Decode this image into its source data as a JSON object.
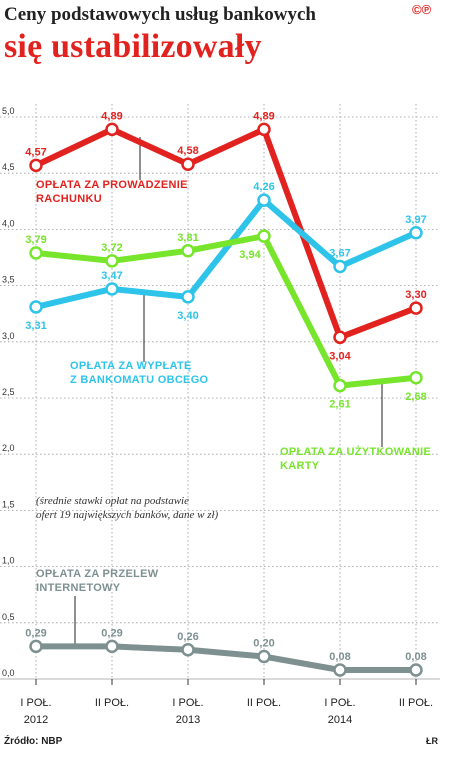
{
  "header": {
    "title": "Ceny podstawowych usług bankowych",
    "subtitle": "się ustabilizowały",
    "logo": "©℗"
  },
  "footer": {
    "source": "Źródło: NBP",
    "credit": "ŁR"
  },
  "chart_data": {
    "type": "line",
    "ylim": [
      0,
      5.0
    ],
    "yticks": [
      "0,0",
      "0,5",
      "1,0",
      "1,5",
      "2,0",
      "2,5",
      "3,0",
      "3,5",
      "4,0",
      "4,5",
      "5,0"
    ],
    "grid": true,
    "note_lines": [
      "(średnie stawki opłat na podstawie",
      "ofert 19 największych banków, dane w zł)"
    ],
    "categories": [
      {
        "line1": "I POŁ.",
        "line2": "2012"
      },
      {
        "line1": "II POŁ.",
        "line2": ""
      },
      {
        "line1": "I POŁ.",
        "line2": "2013"
      },
      {
        "line1": "II POŁ.",
        "line2": ""
      },
      {
        "line1": "I POŁ.",
        "line2": "2014"
      },
      {
        "line1": "II POŁ.",
        "line2": ""
      }
    ],
    "series": [
      {
        "id": "rachunek",
        "name_lines": [
          "OPŁATA ZA PROWADZENIE",
          "RACHUNKU"
        ],
        "color": "#e2221f",
        "values": [
          4.57,
          4.89,
          4.58,
          4.89,
          3.04,
          3.3
        ],
        "labels": [
          "4,57",
          "4,89",
          "4,58",
          "4,89",
          "3,04",
          "3,30"
        ]
      },
      {
        "id": "bankomat",
        "name_lines": [
          "OPŁATA ZA WYPŁATĘ",
          "Z BANKOMATU OBCEGO"
        ],
        "color": "#2ec4ea",
        "values": [
          3.31,
          3.47,
          3.4,
          4.26,
          3.67,
          3.97
        ],
        "labels": [
          "3,31",
          "3,47",
          "3,40",
          "4,26",
          "3,67",
          "3,97"
        ]
      },
      {
        "id": "karta",
        "name_lines": [
          "OPŁATA ZA UŻYTKOWANIE",
          "KARTY"
        ],
        "color": "#77e52b",
        "values": [
          3.79,
          3.72,
          3.81,
          3.94,
          2.61,
          2.68
        ],
        "labels": [
          "3,79",
          "3,72",
          "3,81",
          "3,94",
          "2,61",
          "2,68"
        ]
      },
      {
        "id": "przelew",
        "name_lines": [
          "OPŁATA ZA PRZELEW",
          "INTERNETOWY"
        ],
        "color": "#7e9090",
        "values": [
          0.29,
          0.29,
          0.26,
          0.2,
          0.08,
          0.08
        ],
        "labels": [
          "0,29",
          "0,29",
          "0,26",
          "0,20",
          "0,08",
          "0,08"
        ]
      }
    ]
  }
}
